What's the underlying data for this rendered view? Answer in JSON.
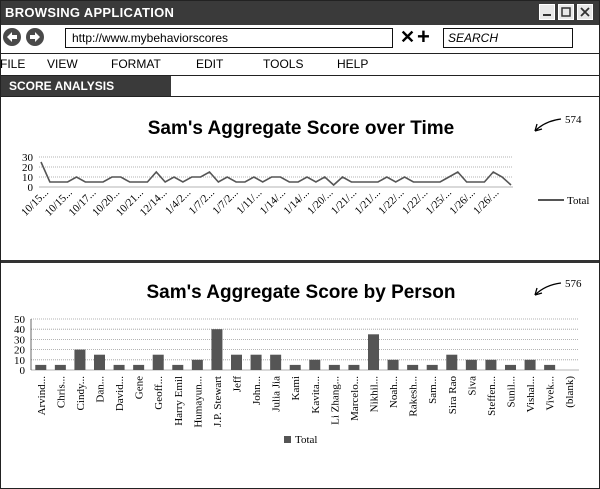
{
  "window": {
    "title": "BROWSING APPLICATION"
  },
  "address_bar": {
    "url": "http://www.mybehaviorscores",
    "search_placeholder": "SEARCH"
  },
  "menu": [
    "FILE",
    "VIEW",
    "FORMAT",
    "EDIT",
    "TOOLS",
    "HELP"
  ],
  "tab": {
    "label": "SCORE ANALYSIS"
  },
  "callouts": {
    "chart1": "574",
    "chart2": "576"
  },
  "colors": {
    "chrome": "#3a3a3a",
    "series": "#555555",
    "grid": "#9a9a9a"
  },
  "chart_data": [
    {
      "type": "line",
      "title": "Sam's Aggregate Score over Time",
      "ylim": [
        0,
        30
      ],
      "yticks": [
        0,
        10,
        20,
        30
      ],
      "legend": "right",
      "series": [
        {
          "name": "Total",
          "values": [
            25,
            5,
            5,
            5,
            10,
            5,
            5,
            5,
            10,
            10,
            5,
            5,
            5,
            15,
            5,
            10,
            5,
            10,
            10,
            15,
            5,
            10,
            5,
            5,
            10,
            5,
            10,
            10,
            5,
            5,
            10,
            5,
            10,
            2,
            10,
            5,
            5,
            5,
            5,
            10,
            5,
            10,
            5,
            5,
            5,
            5,
            10,
            15,
            5,
            5,
            5,
            15,
            10,
            2
          ]
        }
      ],
      "tick_labels": [
        "10/15...",
        "10/15...",
        "10/17...",
        "10/20...",
        "10/21...",
        "12/14...",
        "1/4/2...",
        "1/7/2...",
        "1/7/2...",
        "1/11/...",
        "1/14/...",
        "1/14/...",
        "1/20/...",
        "1/21/...",
        "1/21/...",
        "1/22/...",
        "1/22/...",
        "1/25/...",
        "1/26/...",
        "1/26/..."
      ]
    },
    {
      "type": "bar",
      "title": "Sam's Aggregate Score by Person",
      "ylim": [
        0,
        50
      ],
      "yticks": [
        0,
        10,
        20,
        30,
        40,
        50
      ],
      "legend": "bottom",
      "categories": [
        "Arvind...",
        "Chris...",
        "Cindy...",
        "Dan...",
        "David...",
        "Gene",
        "Geoff...",
        "Harry Emil",
        "Humayun...",
        "J.P. Stewart",
        "Jeff",
        "John...",
        "Julia Jia",
        "Kami",
        "Kavita...",
        "Li Zhang...",
        "Marcelo...",
        "Nikhil...",
        "Noah...",
        "Rakesh...",
        "Sam...",
        "Sira Rao",
        "Siva",
        "Steffen...",
        "Sunil...",
        "Vishal...",
        "Vivek...",
        "(blank)"
      ],
      "series": [
        {
          "name": "Total",
          "values": [
            5,
            5,
            20,
            15,
            5,
            5,
            15,
            5,
            10,
            40,
            15,
            15,
            15,
            5,
            10,
            5,
            5,
            35,
            10,
            5,
            5,
            15,
            10,
            10,
            5,
            10,
            5,
            0
          ]
        }
      ]
    }
  ]
}
